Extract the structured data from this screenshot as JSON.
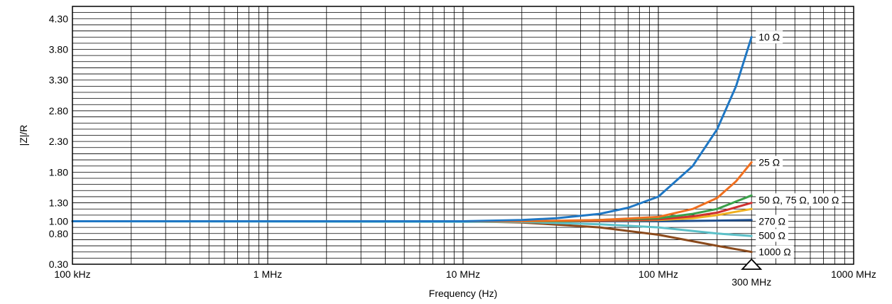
{
  "chart_data": {
    "type": "line",
    "title": "",
    "xlabel": "Frequency (Hz)",
    "ylabel": "|Z|/R",
    "x_scale": "log",
    "xlim": [
      100000,
      1000000000
    ],
    "ylim": [
      0.3,
      4.5
    ],
    "grid": true,
    "x_ticks": [
      {
        "value": 100000,
        "label": "100 kHz"
      },
      {
        "value": 1000000,
        "label": "1 MHz"
      },
      {
        "value": 10000000,
        "label": "10 MHz"
      },
      {
        "value": 100000000,
        "label": "100 MHz"
      },
      {
        "value": 1000000000,
        "label": "1000 MHz"
      }
    ],
    "y_ticks": [
      {
        "value": 0.3,
        "label": "0.30"
      },
      {
        "value": 0.8,
        "label": "0.80"
      },
      {
        "value": 1.0,
        "label": "1.00"
      },
      {
        "value": 1.3,
        "label": "1.30"
      },
      {
        "value": 1.8,
        "label": "1.80"
      },
      {
        "value": 2.3,
        "label": "2.30"
      },
      {
        "value": 2.8,
        "label": "2.80"
      },
      {
        "value": 3.3,
        "label": "3.30"
      },
      {
        "value": 3.8,
        "label": "3.80"
      },
      {
        "value": 4.3,
        "label": "4.30"
      }
    ],
    "marker": {
      "value": 300000000,
      "label": "300 MHz",
      "symbol": "triangle"
    },
    "series": [
      {
        "name": "10 Ω",
        "color": "#1f77c4",
        "label": "10 Ω",
        "label_at": 4.0,
        "x": [
          100000,
          10000000,
          20000000,
          30000000,
          50000000,
          70000000,
          100000000,
          150000000,
          200000000,
          250000000,
          300000000
        ],
        "y": [
          1.0,
          1.0,
          1.02,
          1.05,
          1.12,
          1.22,
          1.4,
          1.9,
          2.5,
          3.2,
          4.0
        ]
      },
      {
        "name": "25 Ω",
        "color": "#f07020",
        "label": "25 Ω",
        "label_at": 1.96,
        "x": [
          100000,
          20000000,
          50000000,
          100000000,
          150000000,
          200000000,
          250000000,
          300000000
        ],
        "y": [
          1.0,
          1.0,
          1.02,
          1.07,
          1.2,
          1.38,
          1.65,
          1.96
        ]
      },
      {
        "name": "50 Ω",
        "color": "#3aa04a",
        "x": [
          100000,
          30000000,
          100000000,
          150000000,
          200000000,
          300000000
        ],
        "y": [
          1.0,
          1.0,
          1.05,
          1.12,
          1.2,
          1.42
        ]
      },
      {
        "name": "75 Ω",
        "color": "#d03030",
        "x": [
          100000,
          30000000,
          100000000,
          150000000,
          200000000,
          300000000
        ],
        "y": [
          1.0,
          1.0,
          1.03,
          1.08,
          1.14,
          1.3
        ]
      },
      {
        "name": "100 Ω",
        "color": "#f0b020",
        "x": [
          100000,
          30000000,
          100000000,
          150000000,
          200000000,
          300000000
        ],
        "y": [
          1.0,
          1.0,
          1.02,
          1.05,
          1.1,
          1.2
        ]
      },
      {
        "name": "270 Ω",
        "color": "#1f4e8c",
        "label": "270 Ω",
        "label_at": 1.0,
        "x": [
          100000,
          30000000,
          100000000,
          200000000,
          300000000
        ],
        "y": [
          1.0,
          1.0,
          1.0,
          1.01,
          1.02
        ]
      },
      {
        "name": "500 Ω",
        "color": "#5cc0c8",
        "label": "500 Ω",
        "label_at": 0.77,
        "x": [
          100000,
          20000000,
          50000000,
          100000000,
          200000000,
          300000000
        ],
        "y": [
          1.0,
          0.99,
          0.95,
          0.9,
          0.8,
          0.76
        ]
      },
      {
        "name": "1000 Ω",
        "color": "#8b4a1c",
        "label": "1000 Ω",
        "label_at": 0.5,
        "x": [
          100000,
          10000000,
          20000000,
          50000000,
          100000000,
          200000000,
          300000000
        ],
        "y": [
          1.0,
          1.0,
          0.98,
          0.9,
          0.78,
          0.6,
          0.5
        ]
      }
    ],
    "group_labels": [
      {
        "text": "50 Ω, 75 Ω, 100 Ω",
        "y": 1.35
      }
    ]
  }
}
